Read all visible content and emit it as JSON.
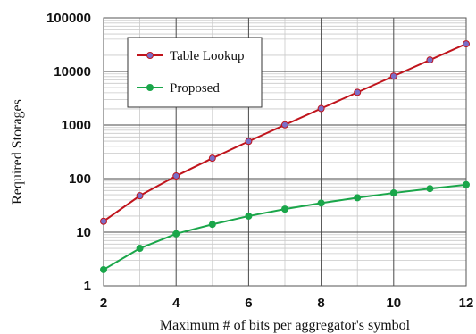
{
  "chart_data": {
    "type": "line",
    "xlabel": "Maximum # of bits per aggregator's symbol",
    "ylabel": "Required Storages",
    "x": [
      2,
      3,
      4,
      5,
      6,
      7,
      8,
      9,
      10,
      11,
      12
    ],
    "xlim": [
      2,
      12
    ],
    "ylim": [
      1,
      100000
    ],
    "yscale": "log",
    "x_ticks": [
      "2",
      "4",
      "6",
      "8",
      "10",
      "12"
    ],
    "y_ticks": [
      "1",
      "10",
      "100",
      "1000",
      "10000",
      "100000"
    ],
    "grid": true,
    "legend_position": "top-left",
    "series": [
      {
        "name": "Table Lookup",
        "color": "#c0141c",
        "marker_color": "#7a6fc8",
        "values": [
          16,
          48,
          112,
          240,
          496,
          1008,
          2032,
          4080,
          8176,
          16368,
          32752
        ]
      },
      {
        "name": "Proposed",
        "color": "#1aa64a",
        "marker_color": "#1aa64a",
        "values": [
          2,
          5,
          9.33,
          14,
          20,
          27,
          35,
          44,
          54,
          65,
          77
        ]
      }
    ]
  }
}
